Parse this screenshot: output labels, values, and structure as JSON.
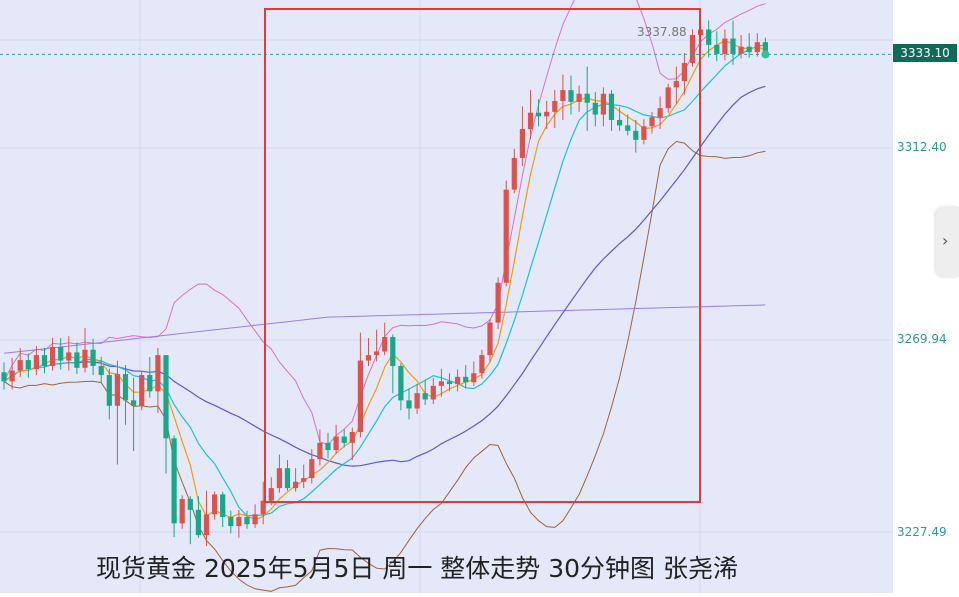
{
  "chart_data": {
    "type": "candlestick",
    "last_price": "3333.10",
    "high_annotation": "3337.88",
    "y_ticks": [
      "3312.40",
      "3269.94",
      "3227.49"
    ],
    "caption": "现货黄金 2025年5月5日 周一 整体走势 30分钟图 张尧浠",
    "colors": {
      "up": "#d9534f",
      "down": "#1aa687",
      "ma_orange": "#f39c12",
      "ma_cyan": "#1fc1d1",
      "ma_blue": "#5a5ad6",
      "ma_purple": "#9b7fe0",
      "boll_upper": "#d872c4",
      "boll_lower": "#a0633a",
      "highlight_box": "#e53935",
      "price_line": "#26a69a"
    },
    "candles": [
      [
        3262.8,
        3260.8,
        3265,
        3259
      ],
      [
        3260.8,
        3263.2,
        3266,
        3259
      ],
      [
        3263.2,
        3265.5,
        3268.2,
        3261.8
      ],
      [
        3265.5,
        3263.5,
        3267,
        3261.6
      ],
      [
        3263.5,
        3266.6,
        3268.6,
        3262.2
      ],
      [
        3266.6,
        3264.2,
        3268.2,
        3262.6
      ],
      [
        3264.2,
        3268.4,
        3270.4,
        3263.2
      ],
      [
        3268.4,
        3265.4,
        3270.4,
        3263.4
      ],
      [
        3265.4,
        3267.2,
        3270.8,
        3263.2
      ],
      [
        3267.2,
        3263.8,
        3269.4,
        3262.4
      ],
      [
        3263.8,
        3267.8,
        3272.6,
        3262.8
      ],
      [
        3267.8,
        3264.2,
        3270.2,
        3262.2
      ],
      [
        3264.2,
        3262.2,
        3266.2,
        3260.6
      ],
      [
        3262.2,
        3255.4,
        3263.6,
        3252.4
      ],
      [
        3255.4,
        3262.4,
        3265.4,
        3242.4
      ],
      [
        3262.4,
        3256.6,
        3264.4,
        3251.2
      ],
      [
        3256.6,
        3255.4,
        3261.6,
        3245.4
      ],
      [
        3255.4,
        3262.2,
        3263.2,
        3254.4
      ],
      [
        3262.2,
        3258.6,
        3266.2,
        3257.2
      ],
      [
        3258.6,
        3266.6,
        3268.2,
        3253.8
      ],
      [
        3266.6,
        3248.2,
        3266.6,
        3240.4
      ],
      [
        3248.2,
        3229.4,
        3248.8,
        3226.4
      ],
      [
        3229.4,
        3234.8,
        3235.6,
        3228.2
      ],
      [
        3234.8,
        3232.4,
        3235.4,
        3224.8
      ],
      [
        3232.4,
        3226.8,
        3235.4,
        3226.2
      ],
      [
        3226.8,
        3231.4,
        3236.6,
        3224.4
      ],
      [
        3231.4,
        3235.8,
        3236.4,
        3230.2
      ],
      [
        3235.8,
        3230.8,
        3236.4,
        3228.6
      ],
      [
        3230.8,
        3228.8,
        3232.2,
        3227.2
      ],
      [
        3228.8,
        3230.8,
        3232.4,
        3226.2
      ],
      [
        3230.8,
        3229.2,
        3232.2,
        3228.2
      ],
      [
        3229.2,
        3231.4,
        3233.6,
        3228.4
      ],
      [
        3231.4,
        3234.4,
        3238.6,
        3229.2
      ],
      [
        3234.4,
        3237.2,
        3239.6,
        3233.4
      ],
      [
        3237.2,
        3241.6,
        3244.6,
        3236.2
      ],
      [
        3241.6,
        3237.2,
        3243.4,
        3236.6
      ],
      [
        3237.2,
        3238.6,
        3241.6,
        3236.4
      ],
      [
        3238.6,
        3239.4,
        3242.4,
        3237.2
      ],
      [
        3239.4,
        3243.6,
        3245.8,
        3238.2
      ],
      [
        3243.6,
        3247.2,
        3250.2,
        3242.2
      ],
      [
        3247.2,
        3245.6,
        3249.4,
        3243.8
      ],
      [
        3245.6,
        3248.6,
        3251.2,
        3244.8
      ],
      [
        3248.6,
        3247.2,
        3250.2,
        3246.2
      ],
      [
        3247.2,
        3249.6,
        3250.6,
        3243.4
      ],
      [
        3249.6,
        3265.4,
        3271.6,
        3248.4
      ],
      [
        3265.4,
        3266.6,
        3270.4,
        3264.2
      ],
      [
        3266.6,
        3267.4,
        3272.2,
        3265.2
      ],
      [
        3267.4,
        3270.6,
        3273.8,
        3266.6
      ],
      [
        3270.6,
        3264.2,
        3271.2,
        3258.2
      ],
      [
        3264.2,
        3256.6,
        3264.8,
        3254.4
      ],
      [
        3256.6,
        3254.8,
        3259.2,
        3252.4
      ],
      [
        3254.8,
        3258.2,
        3260.2,
        3253.6
      ],
      [
        3258.2,
        3256.8,
        3261.2,
        3255.6
      ],
      [
        3256.8,
        3259.8,
        3261.6,
        3255.8
      ],
      [
        3259.8,
        3260.8,
        3263.6,
        3257.4
      ],
      [
        3260.8,
        3260.2,
        3262.6,
        3258.6
      ],
      [
        3260.2,
        3261.8,
        3263.4,
        3258.6
      ],
      [
        3261.8,
        3260.6,
        3264.4,
        3259.2
      ],
      [
        3260.6,
        3262.6,
        3265.2,
        3259.8
      ],
      [
        3262.6,
        3266.6,
        3267.8,
        3261.4
      ],
      [
        3266.6,
        3273.8,
        3274.6,
        3265.2
      ],
      [
        3273.8,
        3282.6,
        3283.8,
        3272.4
      ],
      [
        3282.6,
        3303.2,
        3305.2,
        3281.8
      ],
      [
        3303.2,
        3310.2,
        3312.2,
        3302.4
      ],
      [
        3310.2,
        3316.6,
        3321.6,
        3308.4
      ],
      [
        3316.6,
        3320.2,
        3325.2,
        3314.4
      ],
      [
        3320.2,
        3319.4,
        3323.2,
        3317.2
      ],
      [
        3319.4,
        3320.4,
        3322.8,
        3316.6
      ],
      [
        3320.4,
        3322.8,
        3325.2,
        3316.8
      ],
      [
        3322.8,
        3325.2,
        3328.6,
        3318.6
      ],
      [
        3325.2,
        3322.6,
        3328.4,
        3319.8
      ],
      [
        3322.6,
        3324.4,
        3326.2,
        3320.4
      ],
      [
        3324.4,
        3322.4,
        3330.4,
        3316.2
      ],
      [
        3322.4,
        3319.8,
        3324.8,
        3317.2
      ],
      [
        3319.8,
        3324.4,
        3325.8,
        3317.2
      ],
      [
        3324.4,
        3318.6,
        3325.2,
        3316.2
      ],
      [
        3318.6,
        3317.4,
        3321.4,
        3316.2
      ],
      [
        3317.4,
        3316.2,
        3319.8,
        3315.2
      ],
      [
        3316.2,
        3314.2,
        3318.6,
        3311.4
      ],
      [
        3314.2,
        3317.2,
        3318.8,
        3313.2
      ],
      [
        3317.2,
        3319.2,
        3320.4,
        3315.6
      ],
      [
        3319.2,
        3321.2,
        3323.8,
        3316.6
      ],
      [
        3321.2,
        3325.8,
        3326.6,
        3320.2
      ],
      [
        3325.8,
        3327.2,
        3330.4,
        3322.2
      ],
      [
        3327.2,
        3331.2,
        3333.4,
        3324.2
      ],
      [
        3331.2,
        3337.4,
        3338.6,
        3330.4
      ],
      [
        3337.4,
        3338.6,
        3340.2,
        3336.2
      ],
      [
        3338.6,
        3335.2,
        3340.6,
        3332.4
      ],
      [
        3335.2,
        3333.2,
        3338.2,
        3331.6
      ],
      [
        3333.2,
        3336.6,
        3338.6,
        3331.8
      ],
      [
        3336.6,
        3333.2,
        3340.6,
        3330.8
      ],
      [
        3333.2,
        3334.8,
        3337.4,
        3332.2
      ],
      [
        3334.8,
        3333.6,
        3337.8,
        3332.4
      ],
      [
        3333.6,
        3335.8,
        3337.8,
        3332.6
      ],
      [
        3335.8,
        3333.1,
        3336.8,
        3332.2
      ]
    ]
  }
}
